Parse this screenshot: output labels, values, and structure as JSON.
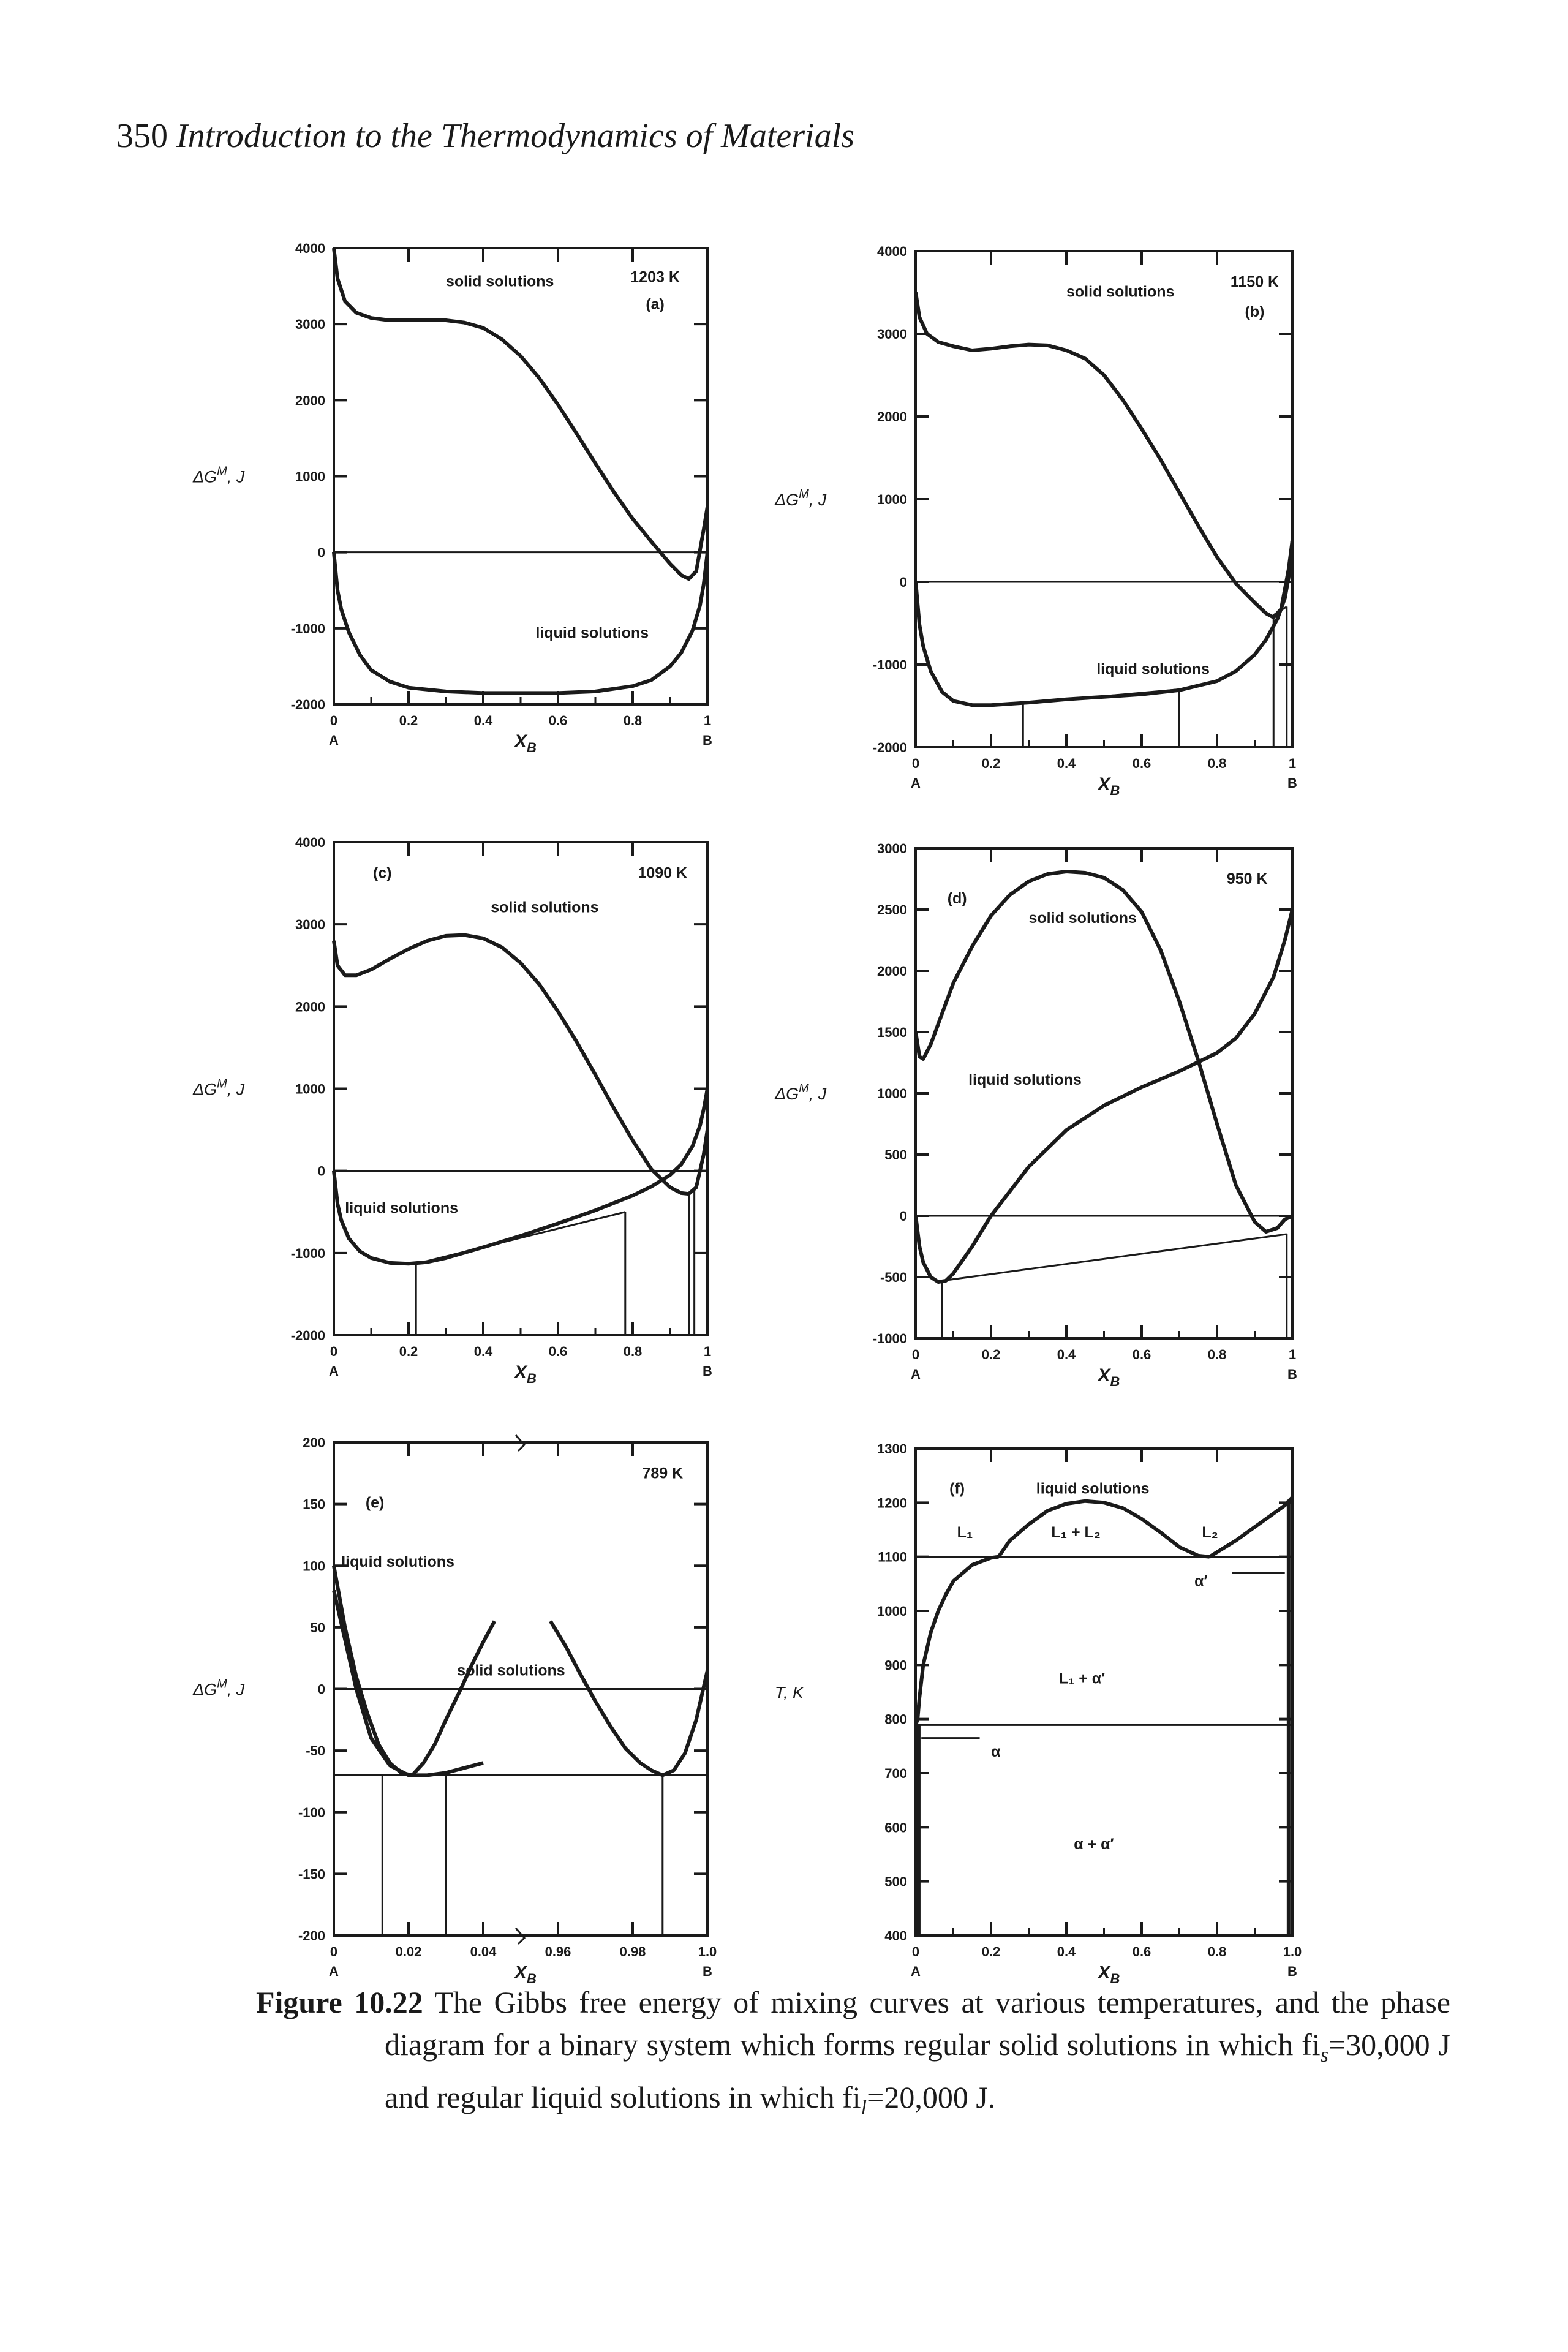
{
  "header": {
    "page_number": "350",
    "book_title": "Introduction to the Thermodynamics of Materials"
  },
  "caption": {
    "label": "Figure 10.22",
    "text_1": " The Gibbs free energy of mixing curves at various temperatures, and the phase diagram for a binary system which forms regular solid solutions in which fi",
    "sub_1": "s",
    "text_2": "=30,000 J and regular liquid solutions in which fi",
    "sub_2": "l",
    "text_3": "=20,000 J."
  },
  "chart_data": [
    {
      "id": "a",
      "panel_label": "(a)",
      "temperature": "1203 K",
      "type": "line",
      "ylabel": "ΔG^M, J",
      "xlabel": "X_B",
      "xlim": [
        0,
        1
      ],
      "ylim": [
        -2000,
        4000
      ],
      "yticks": [
        4000,
        3000,
        2000,
        1000,
        0,
        -1000,
        -2000
      ],
      "xticks": [
        "0",
        "0.2",
        "0.4",
        "0.6",
        "0.8",
        "1"
      ],
      "x_end_labels": [
        "A",
        "B"
      ],
      "series": [
        {
          "name": "solid solutions",
          "x": [
            0,
            0.01,
            0.03,
            0.06,
            0.1,
            0.15,
            0.2,
            0.25,
            0.3,
            0.35,
            0.4,
            0.45,
            0.5,
            0.55,
            0.6,
            0.65,
            0.7,
            0.75,
            0.8,
            0.85,
            0.9,
            0.93,
            0.95,
            0.97,
            0.99,
            1
          ],
          "y": [
            4000,
            3600,
            3300,
            3150,
            3080,
            3050,
            3050,
            3050,
            3050,
            3020,
            2950,
            2800,
            2580,
            2290,
            1940,
            1560,
            1170,
            790,
            440,
            140,
            -150,
            -300,
            -350,
            -250,
            300,
            600
          ]
        },
        {
          "name": "liquid solutions",
          "x": [
            0,
            0.01,
            0.02,
            0.04,
            0.07,
            0.1,
            0.15,
            0.2,
            0.3,
            0.4,
            0.5,
            0.6,
            0.7,
            0.8,
            0.85,
            0.9,
            0.93,
            0.96,
            0.98,
            0.99,
            1
          ],
          "y": [
            0,
            -500,
            -750,
            -1050,
            -1350,
            -1550,
            -1700,
            -1780,
            -1830,
            -1850,
            -1850,
            -1850,
            -1830,
            -1760,
            -1680,
            -1500,
            -1320,
            -1030,
            -700,
            -420,
            0
          ]
        }
      ],
      "hlines": [
        0
      ],
      "tielines": []
    },
    {
      "id": "b",
      "panel_label": "(b)",
      "temperature": "1150 K",
      "type": "line",
      "ylabel": "ΔG^M, J",
      "xlabel": "X_B",
      "xlim": [
        0,
        1
      ],
      "ylim": [
        -2000,
        4000
      ],
      "yticks": [
        4000,
        3000,
        2000,
        1000,
        0,
        -1000,
        -2000
      ],
      "xticks": [
        "0",
        "0.2",
        "0.4",
        "0.6",
        "0.8",
        "1"
      ],
      "x_end_labels": [
        "A",
        "B"
      ],
      "series": [
        {
          "name": "solid solutions",
          "x": [
            0,
            0.01,
            0.03,
            0.06,
            0.1,
            0.15,
            0.2,
            0.25,
            0.3,
            0.35,
            0.4,
            0.45,
            0.5,
            0.55,
            0.6,
            0.65,
            0.7,
            0.75,
            0.8,
            0.85,
            0.9,
            0.93,
            0.95,
            0.97,
            0.99,
            1
          ],
          "y": [
            3500,
            3200,
            3000,
            2900,
            2850,
            2800,
            2820,
            2850,
            2870,
            2860,
            2800,
            2700,
            2500,
            2200,
            1850,
            1480,
            1080,
            680,
            300,
            -20,
            -250,
            -380,
            -430,
            -330,
            150,
            500
          ]
        },
        {
          "name": "liquid solutions",
          "x": [
            0,
            0.01,
            0.02,
            0.04,
            0.07,
            0.1,
            0.15,
            0.2,
            0.3,
            0.4,
            0.5,
            0.6,
            0.7,
            0.8,
            0.85,
            0.9,
            0.93,
            0.96,
            0.98,
            0.99,
            1
          ],
          "y": [
            0,
            -520,
            -780,
            -1080,
            -1330,
            -1440,
            -1490,
            -1490,
            -1460,
            -1420,
            -1390,
            -1360,
            -1310,
            -1200,
            -1080,
            -880,
            -700,
            -450,
            -200,
            50,
            500
          ]
        }
      ],
      "hlines": [
        0
      ],
      "tielines": [
        {
          "x": [
            0.285,
            0.7
          ],
          "y": [
            -1470,
            -1300
          ]
        },
        {
          "x": [
            0.95,
            0.985
          ],
          "y": [
            -400,
            -300
          ]
        }
      ]
    },
    {
      "id": "c",
      "panel_label": "(c)",
      "temperature": "1090 K",
      "type": "line",
      "ylabel": "ΔG^M, J",
      "xlabel": "X_B",
      "xlim": [
        0,
        1
      ],
      "ylim": [
        -2000,
        4000
      ],
      "yticks": [
        4000,
        3000,
        2000,
        1000,
        0,
        -1000,
        -2000
      ],
      "xticks": [
        "0",
        "0.2",
        "0.4",
        "0.6",
        "0.8",
        "1"
      ],
      "x_end_labels": [
        "A",
        "B"
      ],
      "series": [
        {
          "name": "solid solutions",
          "x": [
            0,
            0.01,
            0.03,
            0.06,
            0.1,
            0.15,
            0.2,
            0.25,
            0.3,
            0.35,
            0.4,
            0.45,
            0.5,
            0.55,
            0.6,
            0.65,
            0.7,
            0.75,
            0.8,
            0.85,
            0.9,
            0.93,
            0.95,
            0.97,
            0.99,
            1
          ],
          "y": [
            2800,
            2500,
            2380,
            2380,
            2450,
            2580,
            2700,
            2800,
            2860,
            2870,
            2830,
            2720,
            2530,
            2270,
            1940,
            1570,
            1170,
            760,
            370,
            20,
            -200,
            -270,
            -280,
            -200,
            200,
            500
          ]
        },
        {
          "name": "liquid solutions",
          "x": [
            0,
            0.01,
            0.02,
            0.04,
            0.07,
            0.1,
            0.15,
            0.2,
            0.25,
            0.3,
            0.4,
            0.5,
            0.6,
            0.7,
            0.8,
            0.85,
            0.9,
            0.93,
            0.96,
            0.98,
            0.99,
            1
          ],
          "y": [
            0,
            -400,
            -600,
            -820,
            -980,
            -1060,
            -1120,
            -1130,
            -1110,
            -1060,
            -930,
            -790,
            -640,
            -480,
            -300,
            -190,
            -50,
            80,
            300,
            550,
            750,
            1000
          ]
        }
      ],
      "hlines": [
        0
      ],
      "tielines": [
        {
          "x": [
            0.22,
            0.78
          ],
          "y": [
            -1130,
            -500
          ]
        },
        {
          "x": [
            0.95,
            0.965
          ],
          "y": [
            -270,
            -230
          ]
        }
      ]
    },
    {
      "id": "d",
      "panel_label": "(d)",
      "temperature": "950 K",
      "type": "line",
      "ylabel": "ΔG^M, J",
      "xlabel": "X_B",
      "xlim": [
        0,
        1
      ],
      "ylim": [
        -1000,
        3000
      ],
      "yticks": [
        3000,
        2500,
        2000,
        1500,
        1000,
        500,
        0,
        -500,
        -1000
      ],
      "xticks": [
        "0",
        "0.2",
        "0.4",
        "0.6",
        "0.8",
        "1"
      ],
      "x_end_labels": [
        "A",
        "B"
      ],
      "series": [
        {
          "name": "solid solutions",
          "x": [
            0,
            0.01,
            0.02,
            0.04,
            0.07,
            0.1,
            0.15,
            0.2,
            0.25,
            0.3,
            0.35,
            0.4,
            0.45,
            0.5,
            0.55,
            0.6,
            0.65,
            0.7,
            0.75,
            0.8,
            0.85,
            0.9,
            0.93,
            0.96,
            0.98,
            1
          ],
          "y": [
            1500,
            1300,
            1280,
            1400,
            1650,
            1900,
            2200,
            2450,
            2620,
            2730,
            2790,
            2810,
            2800,
            2760,
            2660,
            2480,
            2170,
            1750,
            1270,
            750,
            250,
            -50,
            -130,
            -100,
            -30,
            0
          ]
        },
        {
          "name": "liquid solutions",
          "x": [
            0,
            0.01,
            0.02,
            0.04,
            0.06,
            0.08,
            0.1,
            0.15,
            0.2,
            0.3,
            0.4,
            0.5,
            0.6,
            0.7,
            0.8,
            0.85,
            0.9,
            0.95,
            0.98,
            1
          ],
          "y": [
            0,
            -250,
            -380,
            -500,
            -540,
            -530,
            -470,
            -250,
            0,
            400,
            700,
            900,
            1050,
            1180,
            1330,
            1450,
            1650,
            1950,
            2250,
            2500
          ]
        }
      ],
      "hlines": [
        0
      ],
      "tielines": [
        {
          "x": [
            0.07,
            0.985
          ],
          "y": [
            -530,
            -150
          ]
        }
      ]
    },
    {
      "id": "e",
      "panel_label": "(e)",
      "temperature": "789 K",
      "type": "line",
      "ylabel": "ΔG^M, J",
      "xlabel": "X_B",
      "xlim": [
        0,
        1
      ],
      "ylim": [
        -200,
        200
      ],
      "x_scale": "broken: 0–0.05 on the left half, 0.95–1.0 on the right half",
      "yticks": [
        200,
        150,
        100,
        50,
        0,
        -50,
        -100,
        -150,
        -200
      ],
      "xticks": [
        "0",
        "0.02",
        "0.04",
        "0.96",
        "0.98",
        "1.0"
      ],
      "x_end_labels": [
        "A",
        "B"
      ],
      "series": [
        {
          "name": "liquid solutions",
          "x": [
            0,
            0.003,
            0.006,
            0.01,
            0.015,
            0.02,
            0.025,
            0.03,
            0.035,
            0.04
          ],
          "y": [
            80,
            40,
            0,
            -40,
            -62,
            -70,
            -70,
            -68,
            -64,
            -60
          ]
        },
        {
          "name": "solid solutions",
          "x": [
            0,
            0.003,
            0.006,
            0.009,
            0.012,
            0.015,
            0.018,
            0.021,
            0.024,
            0.027,
            0.03,
            0.034,
            0.037,
            0.04,
            0.043
          ],
          "y": [
            100,
            50,
            10,
            -20,
            -45,
            -60,
            -68,
            -70,
            -60,
            -45,
            -25,
            0,
            20,
            38,
            55
          ]
        },
        {
          "name": "",
          "x": [
            0.958,
            0.962,
            0.966,
            0.97,
            0.974,
            0.978,
            0.982,
            0.985,
            0.988,
            0.991,
            0.994,
            0.997,
            1.0
          ],
          "y": [
            55,
            35,
            12,
            -10,
            -30,
            -48,
            -60,
            -66,
            -70,
            -66,
            -52,
            -25,
            15
          ]
        }
      ],
      "hlines": [
        0,
        -70
      ],
      "tielines": [
        {
          "x": [
            0.013,
            0.013
          ],
          "y": [
            -70,
            -200
          ]
        },
        {
          "x": [
            0.03,
            0.03
          ],
          "y": [
            -70,
            -200
          ]
        },
        {
          "x": [
            0.988,
            0.988
          ],
          "y": [
            -70,
            -200
          ]
        }
      ]
    },
    {
      "id": "f",
      "panel_label": "(f)",
      "type": "line",
      "ylabel": "T, K",
      "xlabel": "X_B",
      "xlim": [
        0,
        1
      ],
      "ylim": [
        400,
        1300
      ],
      "yticks": [
        1300,
        1200,
        1100,
        1000,
        900,
        800,
        700,
        600,
        500,
        400
      ],
      "xticks": [
        "0",
        "0.2",
        "0.4",
        "0.6",
        "0.8",
        "1.0"
      ],
      "x_end_labels": [
        "A",
        "B"
      ],
      "region_labels": [
        "liquid solutions",
        "L₁",
        "L₁ + L₂",
        "L₂",
        "α′",
        "L₁ + α′",
        "α",
        "α + α′"
      ],
      "series": [
        {
          "name": "L₁ liquidus",
          "x": [
            0,
            0.005,
            0.01,
            0.02,
            0.04,
            0.06,
            0.08,
            0.1,
            0.15,
            0.2,
            0.22
          ],
          "y": [
            789,
            800,
            840,
            900,
            960,
            1000,
            1030,
            1055,
            1085,
            1098,
            1100
          ]
        },
        {
          "name": "L₁ + L₂ miscibility gap",
          "x": [
            0.22,
            0.25,
            0.3,
            0.35,
            0.4,
            0.45,
            0.5,
            0.55,
            0.6,
            0.65,
            0.7,
            0.75,
            0.78
          ],
          "y": [
            1100,
            1130,
            1160,
            1185,
            1198,
            1203,
            1200,
            1190,
            1170,
            1145,
            1118,
            1102,
            1100
          ]
        },
        {
          "name": "L₂ liquidus",
          "x": [
            0.78,
            0.85,
            0.9,
            0.95,
            0.98,
            1.0
          ],
          "y": [
            1100,
            1130,
            1155,
            1180,
            1195,
            1210
          ]
        }
      ],
      "hlines": [
        1100,
        789
      ],
      "tielines": []
    }
  ]
}
